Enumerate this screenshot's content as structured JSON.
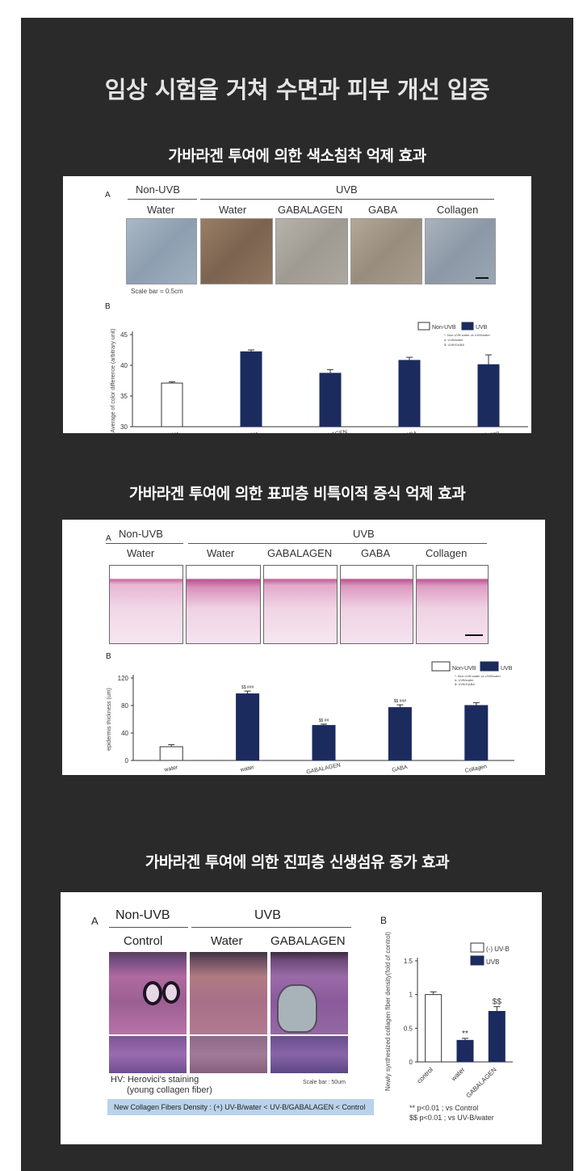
{
  "main_title": "임상 시험을 거쳐 수면과 피부 개선 입증",
  "sections": [
    {
      "title": "가바라겐 투여에 의한 색소침착 억제 효과"
    },
    {
      "title": "가바라겐 투여에 의한 표피층 비특이적 증식 억제 효과"
    },
    {
      "title": "가바라겐 투여에 의한 진피층 신생섬유 증가 효과"
    }
  ],
  "fig1": {
    "panel_a": "A",
    "panel_b": "B",
    "group_nonuvb": "Non-UVB",
    "group_uvb": "UVB",
    "cols": [
      "Water",
      "Water",
      "GABALAGEN",
      "GABA",
      "Collagen"
    ],
    "scale_note": "Scale bar = 0.5cm",
    "legend": [
      "Non-UVB",
      "UVB"
    ],
    "stat_notes": [
      "*: Non-UVB water vs UVB/water",
      "#: UVB/water",
      "$: UVB/GABA"
    ],
    "bar_marks": [
      "***",
      "###",
      "$$"
    ],
    "colors": {
      "uvb": "#1c2b5e",
      "non_uvb": "#ffffff"
    }
  },
  "fig2": {
    "panel_a": "A",
    "panel_b": "B",
    "group_nonuvb": "Non-UVB",
    "group_uvb": "UVB",
    "cols": [
      "Water",
      "Water",
      "GABALAGEN",
      "GABA",
      "Collagen"
    ],
    "legend": [
      "Non-UVB",
      "UVB"
    ],
    "stat_notes": [
      "*: Non-UVB water vs UVB/water",
      "#: UVB/water",
      "$: UVB/GABA"
    ],
    "bar_marks": [
      "$$ ###",
      "$$ ##",
      "$$ ###"
    ]
  },
  "fig3": {
    "panel_a": "A",
    "panel_b": "B",
    "group_nonuvb": "Non-UVB",
    "group_uvb": "UVB",
    "cols": [
      "Control",
      "Water",
      "GABALAGEN"
    ],
    "stain1": "HV: Herovici's staining",
    "stain2": "(young collagen fiber)",
    "scale_note": "Scale bar : 50um",
    "caption": "New Collagen Fibers Density : (+) UV-B/water < UV-B/GABALAGEN < Control",
    "legend": [
      "(-) UV-B",
      "UVB"
    ],
    "bar_marks": [
      "**",
      "$$"
    ],
    "footnote1": "** p<0.01 ; vs Control",
    "footnote2": "$$ p<0.01 ; vs UV-B/water"
  },
  "chart_data": [
    {
      "type": "bar",
      "title": "",
      "ylabel": "Average of color difference (arbitrary unit)",
      "xlabel": "",
      "categories": [
        "water",
        "water",
        "GABALAGEN",
        "GABA",
        "Collagen"
      ],
      "series": [
        {
          "name": "Non-UVB",
          "values": [
            37.1,
            null,
            null,
            null,
            null
          ]
        },
        {
          "name": "UVB",
          "values": [
            null,
            42.2,
            38.7,
            40.8,
            40.1
          ]
        }
      ],
      "errors": [
        0.2,
        0.3,
        0.6,
        0.5,
        1.6
      ],
      "ylim": [
        30,
        45
      ],
      "yticks": [
        30,
        35,
        40,
        45
      ],
      "legend": "top-right",
      "grid": false
    },
    {
      "type": "bar",
      "title": "",
      "ylabel": "epidermis thickness (um)",
      "xlabel": "",
      "categories": [
        "water",
        "water",
        "GABALAGEN",
        "GABA",
        "Collagen"
      ],
      "series": [
        {
          "name": "Non-UVB",
          "values": [
            20,
            null,
            null,
            null,
            null
          ]
        },
        {
          "name": "UVB",
          "values": [
            null,
            97,
            51,
            77,
            80
          ]
        }
      ],
      "errors": [
        3,
        4,
        2,
        4,
        4
      ],
      "ylim": [
        0,
        120
      ],
      "yticks": [
        0,
        40,
        80,
        120
      ],
      "legend": "top-right",
      "grid": false
    },
    {
      "type": "bar",
      "title": "",
      "ylabel": "Newly synthesized collagen fiber density(fold of control)",
      "xlabel": "",
      "categories": [
        "control",
        "water",
        "GABALAGEN"
      ],
      "series": [
        {
          "name": "(-) UV-B",
          "values": [
            1.0,
            null,
            null
          ]
        },
        {
          "name": "UVB",
          "values": [
            null,
            0.32,
            0.75
          ]
        }
      ],
      "errors": [
        0.04,
        0.03,
        0.07
      ],
      "ylim": [
        0,
        1.5
      ],
      "yticks": [
        0,
        0.5,
        1.0,
        1.5
      ],
      "legend": "top-right",
      "grid": false
    }
  ]
}
